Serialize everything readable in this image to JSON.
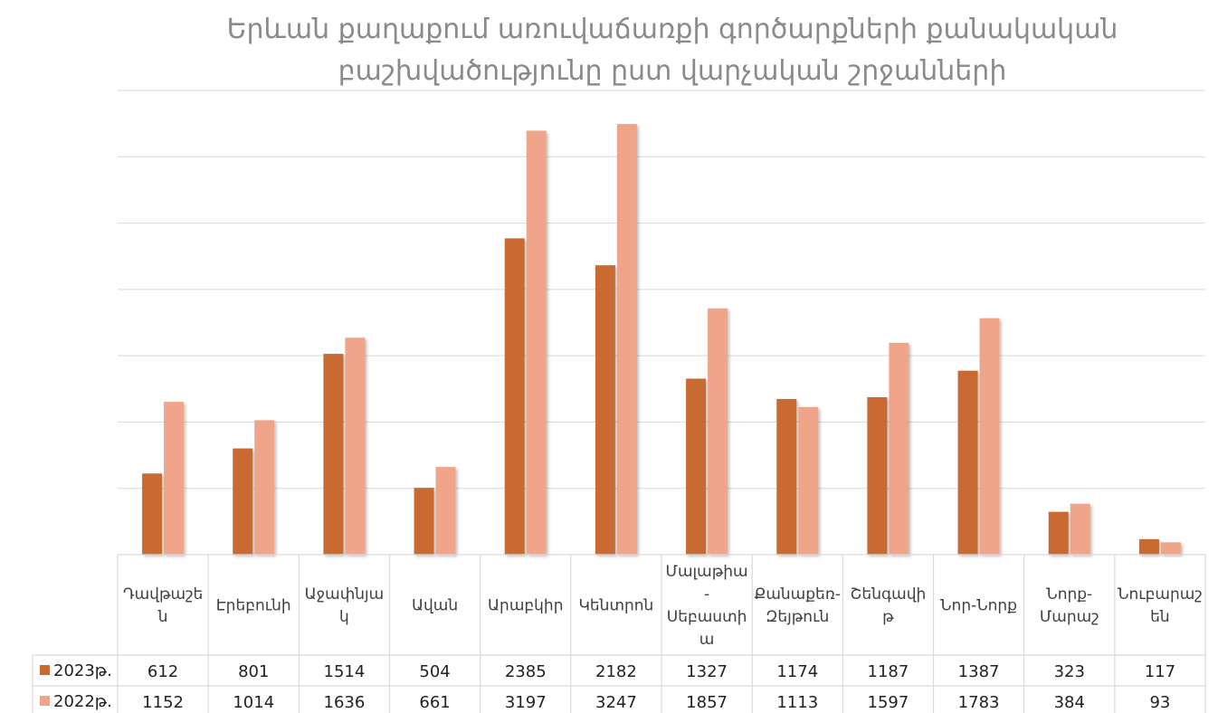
{
  "chart_data": {
    "type": "bar",
    "title_lines": [
      "Երևան քաղաքում առուվաճառքի գործարքների քանակական",
      "բաշխվածությունը ըստ վարչական շրջանների"
    ],
    "categories": [
      [
        "Դավթաշե",
        "ն"
      ],
      [
        "Էրեբունի"
      ],
      [
        "Աջափնյա",
        "կ"
      ],
      [
        "Ավան"
      ],
      [
        "Արաբկիր"
      ],
      [
        "Կենտրոն"
      ],
      [
        "Մալաթիա",
        "-",
        "Սեբաստի",
        "ա"
      ],
      [
        "Քանաքեռ-",
        "Զեյթուն"
      ],
      [
        "Շենգավի",
        "թ"
      ],
      [
        "Նոր-Նորք"
      ],
      [
        "Նորք-",
        "Մարաշ"
      ],
      [
        "Նուբարաշ",
        "են"
      ]
    ],
    "series": [
      {
        "name": "2023թ.",
        "color": "#C96A30",
        "values": [
          612,
          801,
          1514,
          504,
          2385,
          2182,
          1327,
          1174,
          1187,
          1387,
          323,
          117
        ]
      },
      {
        "name": "2022թ.",
        "color": "#F0A58A",
        "values": [
          1152,
          1014,
          1636,
          661,
          3197,
          3247,
          1857,
          1113,
          1597,
          1783,
          384,
          93
        ]
      }
    ],
    "ylim": [
      0,
      3500
    ],
    "grid": true,
    "legend": "data-table"
  }
}
